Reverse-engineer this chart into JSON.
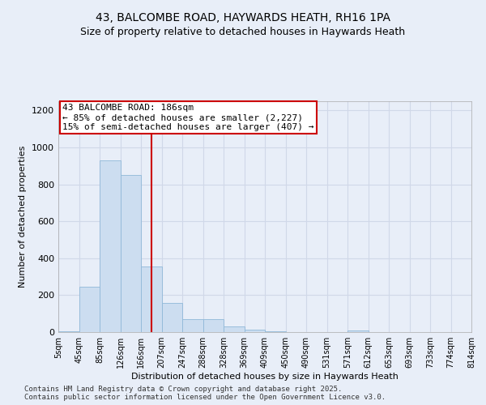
{
  "title_line1": "43, BALCOMBE ROAD, HAYWARDS HEATH, RH16 1PA",
  "title_line2": "Size of property relative to detached houses in Haywards Heath",
  "xlabel": "Distribution of detached houses by size in Haywards Heath",
  "ylabel": "Number of detached properties",
  "bar_values": [
    5,
    247,
    930,
    850,
    357,
    157,
    70,
    70,
    30,
    12,
    5,
    2,
    0,
    0,
    10,
    0,
    0,
    0,
    0,
    0
  ],
  "bin_labels": [
    "5sqm",
    "45sqm",
    "85sqm",
    "126sqm",
    "166sqm",
    "207sqm",
    "247sqm",
    "288sqm",
    "328sqm",
    "369sqm",
    "409sqm",
    "450sqm",
    "490sqm",
    "531sqm",
    "571sqm",
    "612sqm",
    "653sqm",
    "693sqm",
    "733sqm",
    "774sqm",
    "814sqm"
  ],
  "bar_color": "#ccddf0",
  "bar_edgecolor": "#90b8d8",
  "vline_x": 4.5,
  "vline_color": "#cc0000",
  "annotation_text": "43 BALCOMBE ROAD: 186sqm\n← 85% of detached houses are smaller (2,227)\n15% of semi-detached houses are larger (407) →",
  "annotation_box_edgecolor": "#cc0000",
  "annotation_bg": "#ffffff",
  "ylim": [
    0,
    1250
  ],
  "yticks": [
    0,
    200,
    400,
    600,
    800,
    1000,
    1200
  ],
  "background_color": "#e8eef8",
  "grid_color": "#d0d8e8",
  "footnote": "Contains HM Land Registry data © Crown copyright and database right 2025.\nContains public sector information licensed under the Open Government Licence v3.0.",
  "title_fontsize": 10,
  "subtitle_fontsize": 9,
  "annotation_fontsize": 8,
  "footnote_fontsize": 6.5,
  "ylabel_fontsize": 8,
  "xlabel_fontsize": 8,
  "ytick_fontsize": 8,
  "xtick_fontsize": 7
}
